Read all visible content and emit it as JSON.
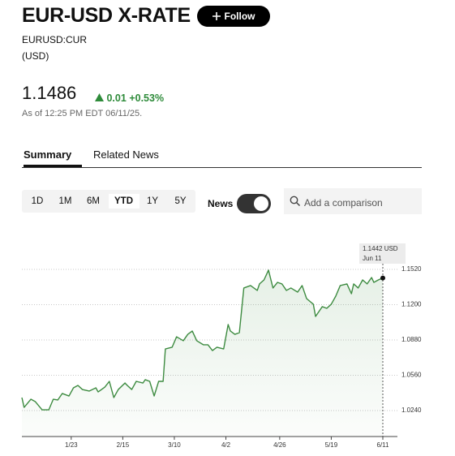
{
  "header": {
    "title": "EUR-USD X-RATE",
    "follow": "Follow",
    "ticker": "EURUSD:CUR",
    "currency": "(USD)"
  },
  "quote": {
    "price": "1.1486",
    "change": "0.01",
    "change_pct": "+0.53%",
    "as_of": "As of 12:25 PM EDT 06/11/25."
  },
  "tabs": [
    "Summary",
    "Related News"
  ],
  "ranges": [
    "1D",
    "1M",
    "6M",
    "YTD",
    "1Y",
    "5Y"
  ],
  "news_toggle": "News",
  "comparison_placeholder": "Add a comparison",
  "chart_data": {
    "type": "line",
    "color": "#3d8b40",
    "x": [
      "1/1",
      "1/2",
      "1/5",
      "1/7",
      "1/10",
      "1/13",
      "1/15",
      "1/17",
      "1/19",
      "1/22",
      "1/24",
      "1/26",
      "1/28",
      "1/31",
      "2/3",
      "2/4",
      "2/7",
      "2/9",
      "2/11",
      "2/13",
      "2/16",
      "2/17",
      "2/19",
      "2/21",
      "2/24",
      "2/25",
      "2/27",
      "3/1",
      "3/3",
      "3/5",
      "3/6",
      "3/9",
      "3/11",
      "3/14",
      "3/16",
      "3/18",
      "3/20",
      "3/23",
      "3/25",
      "3/27",
      "3/29",
      "4/1",
      "4/3",
      "4/4",
      "4/6",
      "4/8",
      "4/10",
      "4/13",
      "4/16",
      "4/17",
      "4/19",
      "4/21",
      "4/23",
      "4/25",
      "4/27",
      "4/29",
      "5/1",
      "5/4",
      "5/6",
      "5/8",
      "5/11",
      "5/12",
      "5/15",
      "5/17",
      "5/19",
      "5/21",
      "5/23",
      "5/26",
      "5/28",
      "5/29",
      "5/31",
      "6/2",
      "6/4",
      "6/6",
      "6/7",
      "6/9",
      "6/11"
    ],
    "values": [
      1.0358,
      1.0269,
      1.0343,
      1.0321,
      1.0247,
      1.0247,
      1.0343,
      1.0336,
      1.0395,
      1.0372,
      1.0446,
      1.0468,
      1.0431,
      1.0417,
      1.0446,
      1.0409,
      1.0453,
      1.0505,
      1.0358,
      1.0431,
      1.049,
      1.0468,
      1.0431,
      1.0505,
      1.049,
      1.052,
      1.0505,
      1.0372,
      1.0505,
      1.0505,
      1.0799,
      1.0814,
      1.0909,
      1.0873,
      1.0931,
      1.0961,
      1.0873,
      1.0836,
      1.0836,
      1.0784,
      1.0814,
      1.0799,
      1.102,
      1.0961,
      1.0931,
      1.0946,
      1.1351,
      1.1373,
      1.1329,
      1.1388,
      1.1424,
      1.1513,
      1.1351,
      1.1402,
      1.1388,
      1.1329,
      1.1351,
      1.1314,
      1.1373,
      1.1255,
      1.1204,
      1.1093,
      1.1182,
      1.1167,
      1.1204,
      1.1277,
      1.1373,
      1.1388,
      1.1299,
      1.1388,
      1.1351,
      1.1424,
      1.1388,
      1.1446,
      1.1402,
      1.1424,
      1.1442
    ],
    "xlim": [
      "1/1",
      "6/11"
    ],
    "xticks": [
      "1/23",
      "2/15",
      "3/10",
      "4/2",
      "4/26",
      "5/19",
      "6/11"
    ],
    "ylim": [
      1.0005,
      1.1755
    ],
    "yticks": [
      {
        "value": 1.024,
        "label": "1.0240"
      },
      {
        "value": 1.056,
        "label": "1.0560"
      },
      {
        "value": 1.088,
        "label": "1.0880"
      },
      {
        "value": 1.12,
        "label": "1.1200"
      },
      {
        "value": 1.152,
        "label": "1.1520"
      }
    ],
    "grid": true,
    "annotation": {
      "text": "1.1442 USD",
      "date": "Jun 11"
    }
  }
}
